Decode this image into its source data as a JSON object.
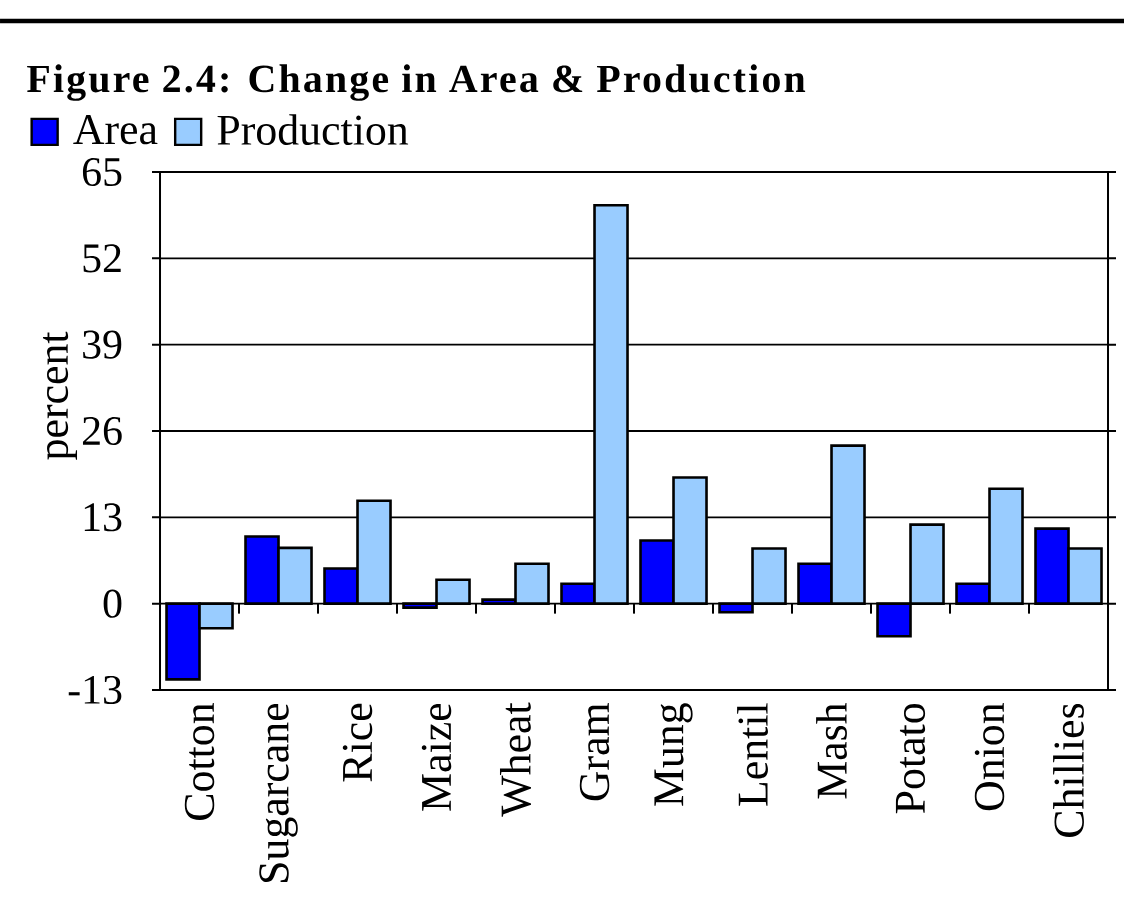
{
  "chart_data": {
    "type": "bar",
    "title": "Figure 2.4: Change in Area & Production",
    "ylabel": "percent",
    "categories": [
      "Cotton",
      "Sugarcane",
      "Rice",
      "Maize",
      "Wheat",
      "Gram",
      "Mung",
      "Lentil",
      "Mash",
      "Potato",
      "Onion",
      "Chillies"
    ],
    "series": [
      {
        "name": "Area",
        "color": "#0000ff",
        "values": [
          -11.4,
          10.1,
          5.3,
          -0.6,
          0.6,
          3.0,
          9.5,
          -1.3,
          6.0,
          -4.9,
          3.0,
          11.3
        ]
      },
      {
        "name": "Production",
        "color": "#99ccff",
        "values": [
          -3.7,
          8.4,
          15.5,
          3.6,
          6.0,
          60.0,
          19.0,
          8.3,
          23.8,
          11.9,
          17.3,
          8.3
        ]
      }
    ],
    "ylim": [
      -13,
      65
    ],
    "yticks": [
      -13,
      0,
      13,
      26,
      39,
      52,
      65
    ],
    "grid": "y",
    "legend": "top left"
  }
}
